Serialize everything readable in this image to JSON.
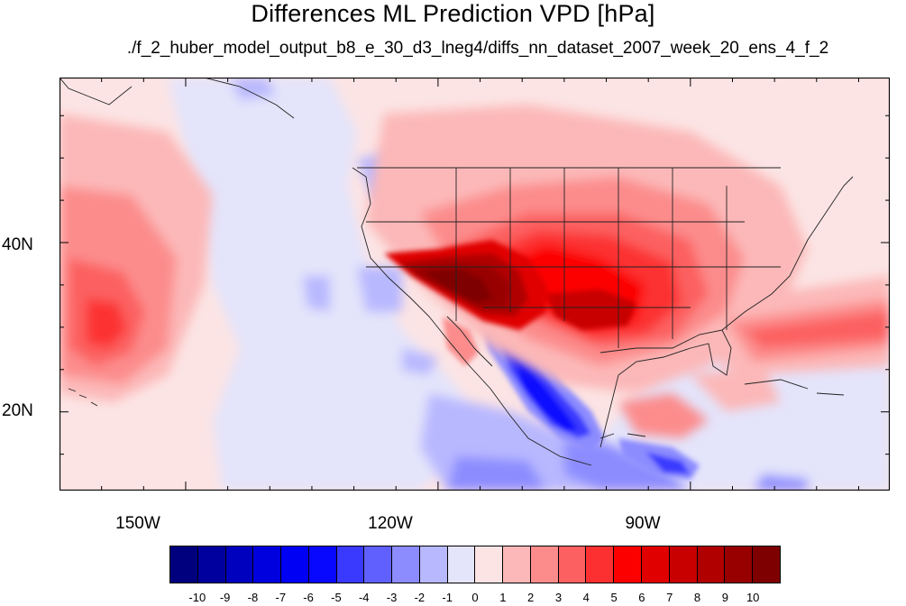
{
  "title": "Differences ML Prediction VPD [hPa]",
  "subtitle": "./f_2_huber_model_output_b8_e_30_d3_lneg4/diffs_nn_dataset_2007_week_20_ens_4_f_2",
  "map": {
    "lat_labels": [
      "40N",
      "20N"
    ],
    "lon_labels": [
      "150W",
      "120W",
      "90W"
    ]
  },
  "colorbar": {
    "levels": [
      "-10",
      "-9",
      "-8",
      "-7",
      "-6",
      "-5",
      "-4",
      "-3",
      "-2",
      "-1",
      "0",
      "1",
      "2",
      "3",
      "4",
      "5",
      "6",
      "7",
      "8",
      "9",
      "10"
    ],
    "colors": [
      "#00007f",
      "#00009f",
      "#0000bf",
      "#0000df",
      "#0000f5",
      "#0808ff",
      "#3a3aff",
      "#6060ff",
      "#8c8cff",
      "#b8b8ff",
      "#e4e4fb",
      "#fce4e4",
      "#fcb8b8",
      "#fc8c8c",
      "#fc6060",
      "#fc3030",
      "#fc0000",
      "#e00000",
      "#c80000",
      "#b00000",
      "#980000",
      "#7f0000"
    ]
  }
}
